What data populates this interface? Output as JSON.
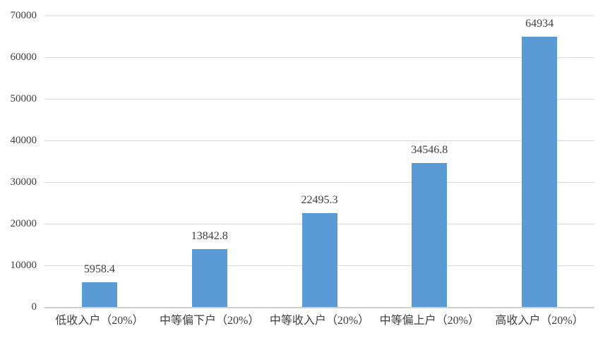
{
  "chart_data": {
    "type": "bar",
    "title": "",
    "xlabel": "",
    "ylabel": "",
    "categories": [
      "低收入户（20%）",
      "中等偏下户（20%）",
      "中等收入户（20%）",
      "中等偏上户（20%）",
      "高收入户（20%）"
    ],
    "values": [
      5958.4,
      13842.8,
      22495.3,
      34546.8,
      64934
    ],
    "value_labels": [
      "5958.4",
      "13842.8",
      "22495.3",
      "34546.8",
      "64934"
    ],
    "ylim": [
      0,
      70000
    ],
    "yticks": [
      0,
      10000,
      20000,
      30000,
      40000,
      50000,
      60000,
      70000
    ],
    "ytick_labels": [
      "0",
      "10000",
      "20000",
      "30000",
      "40000",
      "50000",
      "60000",
      "70000"
    ],
    "grid": true,
    "legend": false,
    "legend_position": "none",
    "bar_color": "#5B9BD5",
    "gridline_color": "#D9D9D9",
    "axis_line_color": "#CFCFCF",
    "text_color": "#3F3F3F",
    "background_color": "#FFFFFF"
  }
}
